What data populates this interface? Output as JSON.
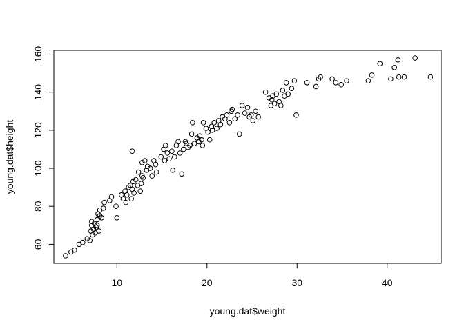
{
  "chart_data": {
    "type": "scatter",
    "title": "",
    "xlabel": "young.dat$weight",
    "ylabel": "young.dat$height",
    "xlim": [
      3.0,
      46.0
    ],
    "ylim": [
      50.0,
      162.0
    ],
    "xticks": [
      10,
      20,
      30,
      40
    ],
    "yticks": [
      60,
      80,
      100,
      120,
      140,
      160
    ],
    "grid": false,
    "marker": "open-circle",
    "x": [
      4.3,
      4.9,
      5.3,
      5.8,
      6.2,
      6.7,
      7.0,
      7.1,
      7.2,
      7.2,
      7.3,
      7.4,
      7.5,
      7.6,
      7.7,
      7.8,
      7.8,
      7.9,
      8.0,
      8.1,
      8.1,
      8.3,
      8.5,
      8.6,
      9.2,
      9.4,
      9.9,
      10.0,
      10.5,
      10.7,
      10.9,
      11.0,
      11.1,
      11.3,
      11.5,
      11.6,
      11.7,
      11.7,
      11.8,
      11.9,
      12.1,
      12.3,
      12.4,
      12.6,
      12.7,
      12.8,
      12.8,
      12.9,
      13.1,
      13.3,
      13.4,
      13.7,
      13.9,
      14.1,
      14.3,
      14.4,
      14.9,
      15.2,
      15.3,
      15.4,
      15.6,
      15.8,
      16.1,
      16.2,
      16.4,
      16.6,
      16.8,
      17.0,
      17.2,
      17.4,
      17.6,
      17.7,
      17.9,
      18.1,
      18.3,
      18.4,
      18.6,
      18.9,
      19.1,
      19.2,
      19.4,
      19.5,
      19.6,
      19.9,
      20.1,
      20.3,
      20.5,
      20.6,
      20.8,
      21.1,
      21.3,
      21.5,
      21.7,
      22.0,
      22.2,
      22.5,
      22.7,
      22.8,
      23.1,
      23.4,
      23.6,
      23.9,
      24.2,
      24.5,
      24.7,
      24.9,
      25.1,
      25.4,
      25.7,
      26.5,
      26.9,
      27.1,
      27.2,
      27.3,
      27.5,
      27.7,
      28.0,
      28.2,
      28.4,
      28.6,
      28.8,
      29.0,
      29.4,
      29.7,
      29.9,
      31.1,
      32.1,
      32.4,
      32.6,
      33.9,
      34.3,
      34.9,
      35.5,
      37.9,
      38.3,
      39.2,
      40.4,
      40.8,
      41.2,
      41.3,
      41.9,
      43.1,
      44.8
    ],
    "y": [
      54,
      56,
      57,
      60,
      61,
      63,
      62,
      67,
      70,
      72,
      65,
      68,
      71,
      66,
      69,
      70,
      73,
      76,
      67,
      75,
      78,
      74,
      79,
      82,
      83,
      85,
      80,
      74,
      86,
      84,
      88,
      82,
      86,
      90,
      91,
      84,
      89,
      109,
      93,
      87,
      94,
      91,
      98,
      88,
      92,
      96,
      103,
      95,
      104,
      99,
      101,
      100,
      96,
      104,
      102,
      98,
      106,
      110,
      104,
      112,
      108,
      105,
      109,
      99,
      106,
      112,
      114,
      108,
      97,
      110,
      114,
      113,
      111,
      112,
      118,
      124,
      113,
      116,
      114,
      117,
      115,
      112,
      124,
      121,
      119,
      115,
      122,
      120,
      124,
      121,
      125,
      123,
      127,
      126,
      128,
      124,
      130,
      131,
      126,
      128,
      118,
      133,
      129,
      132,
      127,
      128,
      125,
      130,
      127,
      140,
      137,
      133,
      136,
      138,
      134,
      139,
      135,
      133,
      141,
      138,
      145,
      139,
      142,
      146,
      128,
      145,
      143,
      147,
      148,
      147,
      145,
      144,
      146,
      146,
      149,
      155,
      147,
      153,
      157,
      148,
      148,
      158,
      148
    ]
  }
}
